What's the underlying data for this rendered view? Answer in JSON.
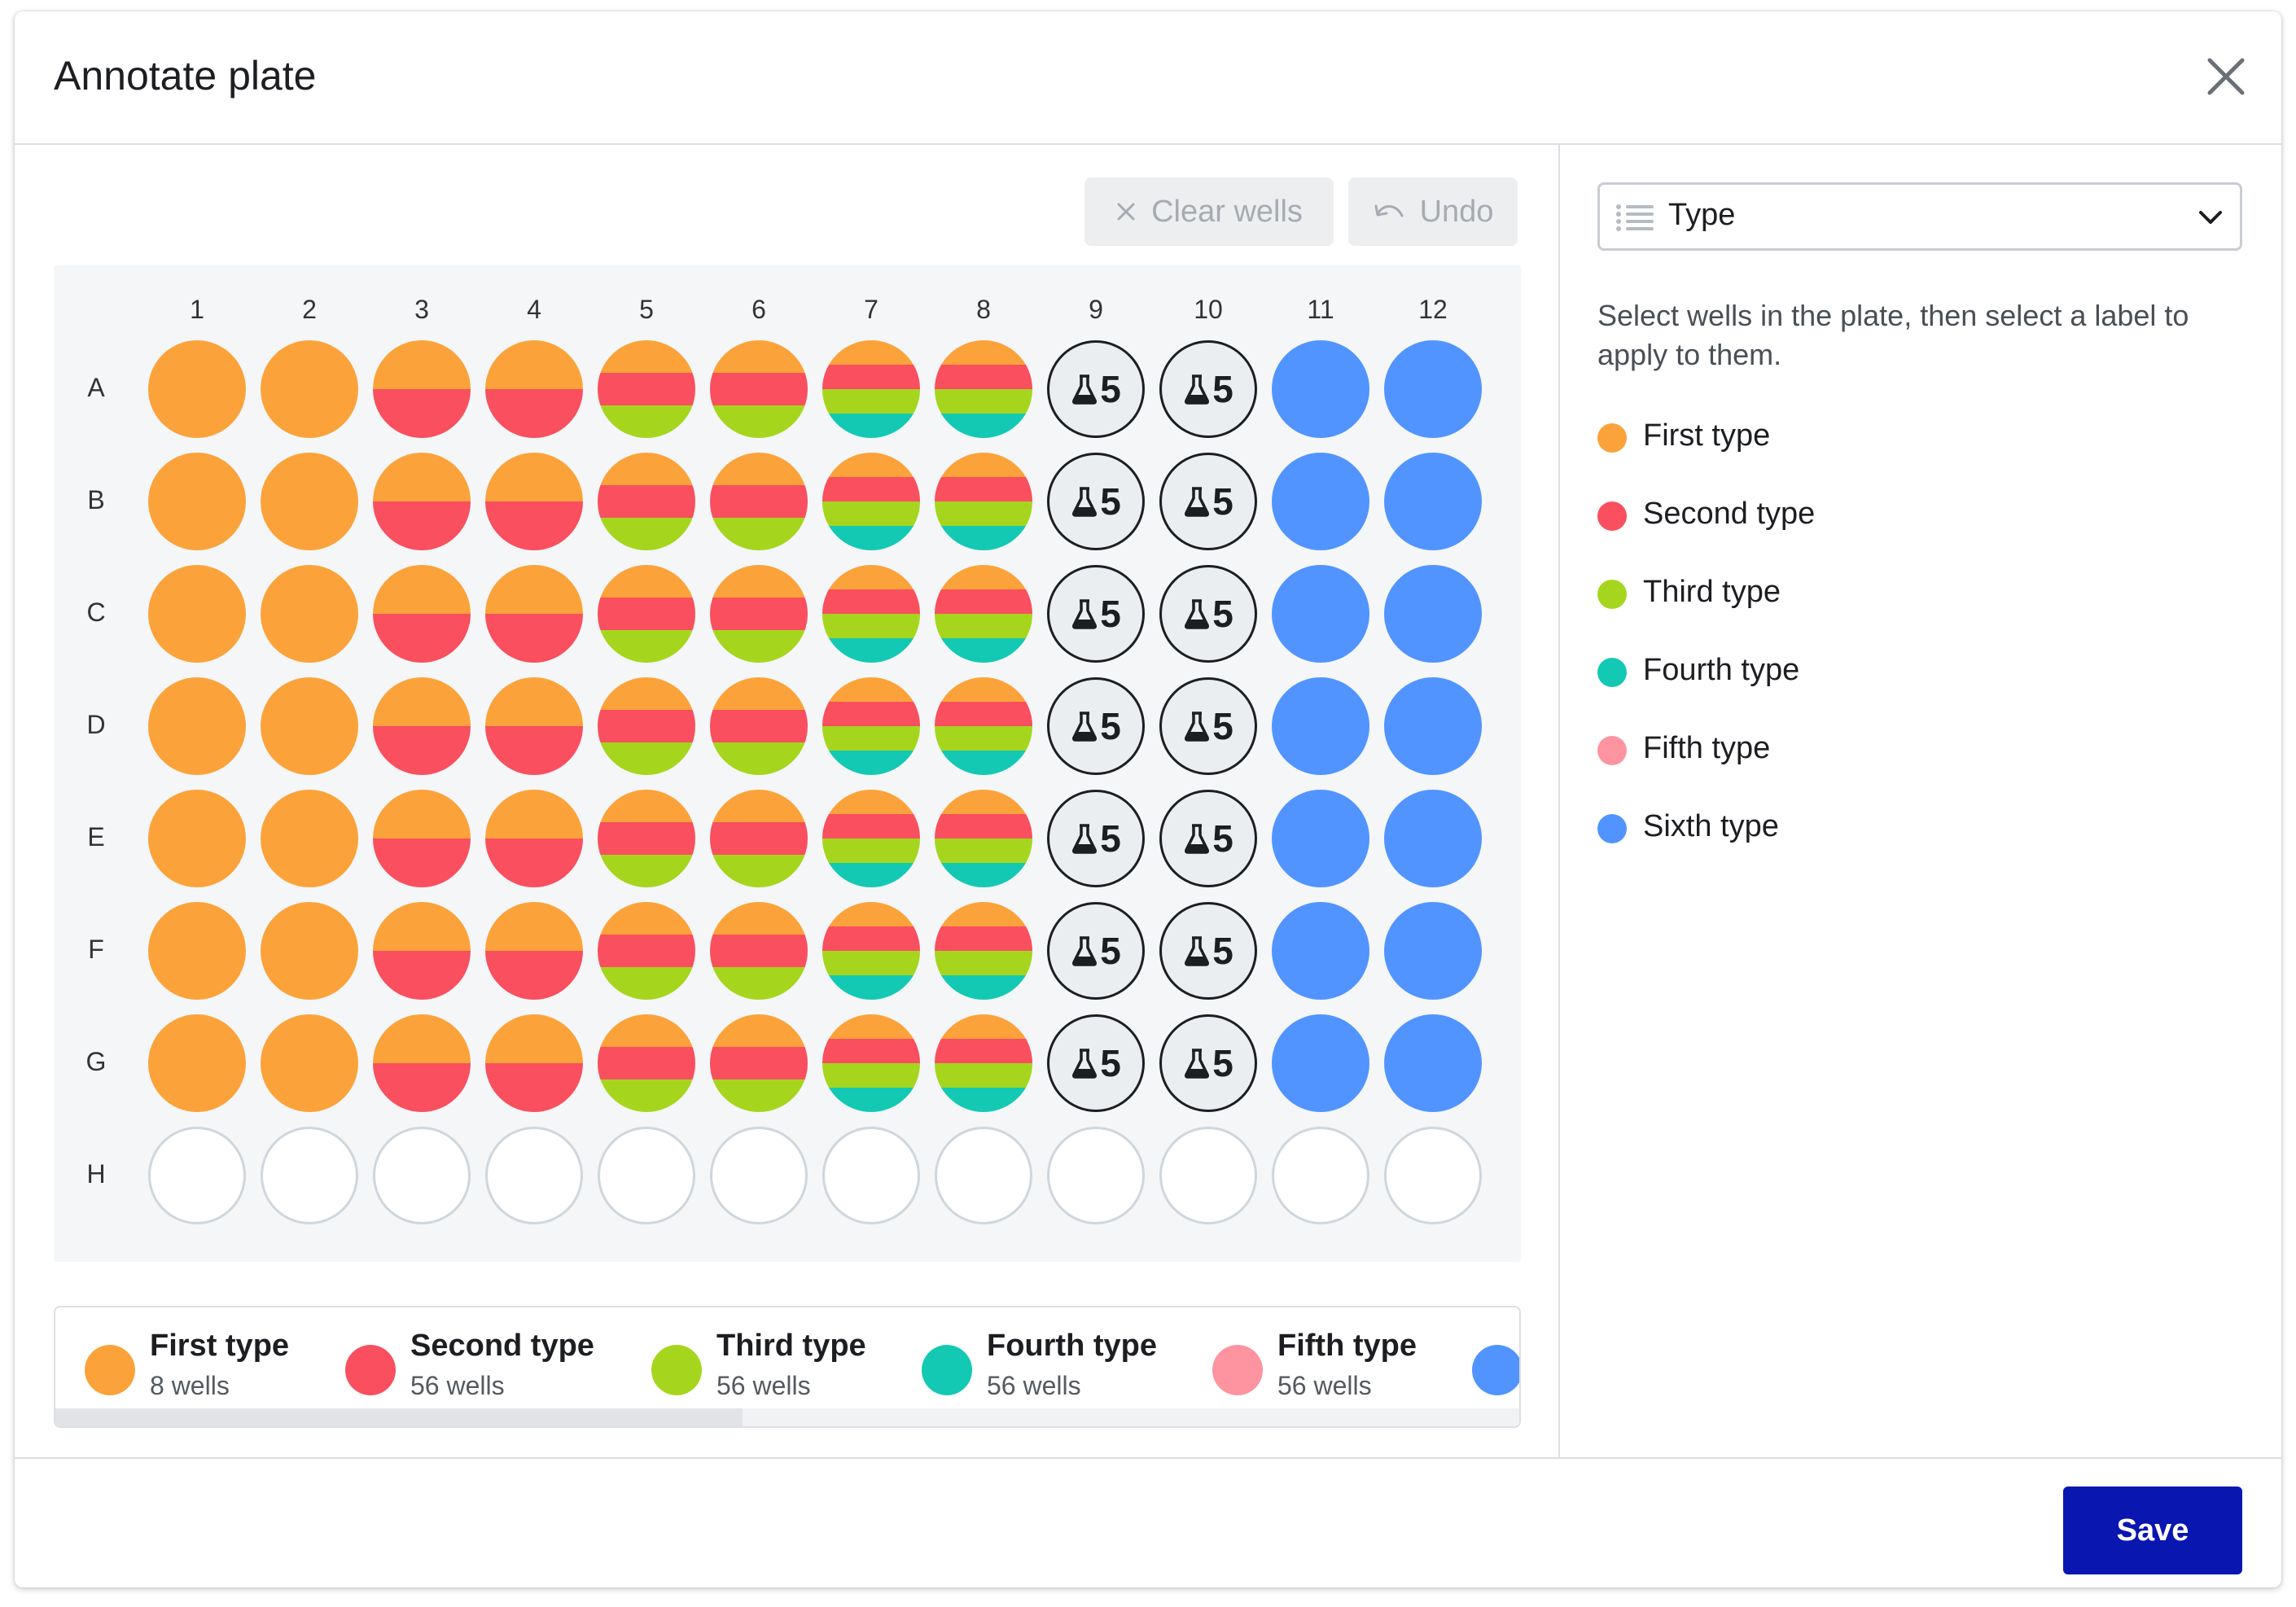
{
  "modal": {
    "title": "Annotate plate"
  },
  "toolbar": {
    "clear_label": "Clear wells",
    "undo_label": "Undo"
  },
  "plate": {
    "columns": [
      "1",
      "2",
      "3",
      "4",
      "5",
      "6",
      "7",
      "8",
      "9",
      "10",
      "11",
      "12"
    ],
    "rows": [
      "A",
      "B",
      "C",
      "D",
      "E",
      "F",
      "G",
      "H"
    ],
    "sample_count": "5",
    "column_patterns": [
      [
        "first"
      ],
      [
        "first"
      ],
      [
        "first",
        "second"
      ],
      [
        "first",
        "second"
      ],
      [
        "first",
        "second",
        "third"
      ],
      [
        "first",
        "second",
        "third"
      ],
      [
        "first",
        "second",
        "third",
        "fourth"
      ],
      [
        "first",
        "second",
        "third",
        "fourth"
      ],
      "sample",
      "sample",
      [
        "sixth"
      ],
      [
        "sixth"
      ]
    ],
    "filled_rows": 7
  },
  "colors": {
    "first": "#fba33a",
    "second": "#f94f5e",
    "third": "#a5d61d",
    "fourth": "#14c9b3",
    "fifth": "#fd94a0",
    "sixth": "#5194ff"
  },
  "legend": [
    {
      "key": "first",
      "name": "First type",
      "count": "8 wells"
    },
    {
      "key": "second",
      "name": "Second type",
      "count": "56 wells"
    },
    {
      "key": "third",
      "name": "Third type",
      "count": "56 wells"
    },
    {
      "key": "fourth",
      "name": "Fourth type",
      "count": "56 wells"
    },
    {
      "key": "fifth",
      "name": "Fifth type",
      "count": "56 wells"
    },
    {
      "key": "sixth",
      "name": "",
      "count": ""
    }
  ],
  "sidebar": {
    "select_value": "Type",
    "hint": "Select wells in the plate, then select a label to apply to them.",
    "labels": [
      {
        "key": "first",
        "name": "First type"
      },
      {
        "key": "second",
        "name": "Second type"
      },
      {
        "key": "third",
        "name": "Third type"
      },
      {
        "key": "fourth",
        "name": "Fourth type"
      },
      {
        "key": "fifth",
        "name": "Fifth type"
      },
      {
        "key": "sixth",
        "name": "Sixth type"
      }
    ]
  },
  "footer": {
    "save_label": "Save"
  }
}
